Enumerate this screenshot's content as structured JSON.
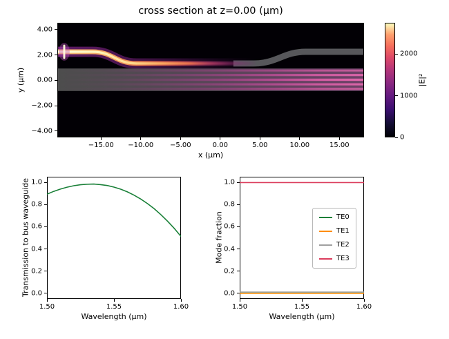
{
  "figure": {
    "title": "cross section at z=0.00 (μm)"
  },
  "field_plot": {
    "xlabel": "x (μm)",
    "ylabel": "y (μm)",
    "xlim": [
      -20.5,
      18.1
    ],
    "ylim": [
      -4.5,
      4.54
    ],
    "xticks": {
      "values": [
        -15,
        -10,
        -5,
        0,
        5,
        10,
        15
      ],
      "labels": [
        "−15.00",
        "−10.00",
        "−5.00",
        "0.00",
        "5.00",
        "10.00",
        "15.00"
      ]
    },
    "yticks": {
      "values": [
        4,
        2,
        0,
        -2,
        -4
      ],
      "labels": [
        "4.00",
        "2.00",
        "0.00",
        "−2.00",
        "−4.00"
      ]
    },
    "colorbar": {
      "label": "|E|²",
      "ticks": {
        "values": [
          0,
          1000,
          2000
        ],
        "labels": [
          "0",
          "1000",
          "2000"
        ]
      },
      "vmin": 0,
      "vmax": 2750,
      "colormap": "magma"
    }
  },
  "chart_data": [
    {
      "type": "heatmap",
      "title": "cross section at z=0.00 (μm)",
      "xlabel": "x (μm)",
      "ylabel": "y (μm)",
      "xlim": [
        -20.5,
        18.1
      ],
      "ylim": [
        -4.5,
        4.54
      ],
      "colormap": "magma",
      "value_label": "|E|²",
      "colorbar_ticks": [
        0,
        1000,
        2000
      ],
      "description": "Simulated |E|² field of a waveguide coupler: a bright input waveguide enters at upper left near y≈2.3 μm, S-bends down to y≈1.35 μm and evanescently couples into a wide horizontal bus waveguide (y≈−0.85 to 0.95 μm) showing horizontal interference fringes that grow brighter toward the right; the unlit gray through-waveguide bends back up to y≈2.3 μm on the right."
    },
    {
      "type": "line",
      "xlabel": "Wavelength (μm)",
      "ylabel": "Transmission to bus waveguide",
      "xlim": [
        1.5,
        1.6
      ],
      "ylim": [
        -0.05,
        1.05
      ],
      "xticks": {
        "values": [
          1.5,
          1.55,
          1.6
        ],
        "labels": [
          "1.50",
          "1.55",
          "1.60"
        ]
      },
      "yticks": {
        "values": [
          0,
          0.2,
          0.4,
          0.6,
          0.8,
          1
        ],
        "labels": [
          "0.0",
          "0.2",
          "0.4",
          "0.6",
          "0.8",
          "1.0"
        ]
      },
      "series": [
        {
          "name": "transmission",
          "color": "#1a8038",
          "x": [
            1.5,
            1.505,
            1.51,
            1.515,
            1.52,
            1.525,
            1.53,
            1.535,
            1.54,
            1.545,
            1.55,
            1.555,
            1.56,
            1.565,
            1.57,
            1.575,
            1.58,
            1.585,
            1.59,
            1.595,
            1.6
          ],
          "y": [
            0.893,
            0.918,
            0.939,
            0.956,
            0.969,
            0.978,
            0.983,
            0.984,
            0.979,
            0.971,
            0.957,
            0.938,
            0.914,
            0.884,
            0.849,
            0.808,
            0.762,
            0.709,
            0.65,
            0.585,
            0.513
          ]
        }
      ]
    },
    {
      "type": "line",
      "xlabel": "Wavelength (μm)",
      "ylabel": "Mode fraction",
      "xlim": [
        1.5,
        1.6
      ],
      "ylim": [
        -0.05,
        1.05
      ],
      "xticks": {
        "values": [
          1.5,
          1.55,
          1.6
        ],
        "labels": [
          "1.50",
          "1.55",
          "1.60"
        ]
      },
      "yticks": {
        "values": [
          0,
          0.2,
          0.4,
          0.6,
          0.8,
          1
        ],
        "labels": [
          "0.0",
          "0.2",
          "0.4",
          "0.6",
          "0.8",
          "1.0"
        ]
      },
      "legend_position": "center right",
      "series": [
        {
          "name": "TE0",
          "color": "#1a8038",
          "x": [
            1.5,
            1.6
          ],
          "y": [
            0.002,
            0.002
          ]
        },
        {
          "name": "TE1",
          "color": "#ff8c00",
          "x": [
            1.5,
            1.6
          ],
          "y": [
            0.001,
            0.001
          ]
        },
        {
          "name": "TE2",
          "color": "#a0a0a0",
          "x": [
            1.5,
            1.6
          ],
          "y": [
            0.012,
            0.012
          ]
        },
        {
          "name": "TE3",
          "color": "#db3b5b",
          "x": [
            1.5,
            1.6
          ],
          "y": [
            0.998,
            0.998
          ]
        }
      ]
    }
  ]
}
